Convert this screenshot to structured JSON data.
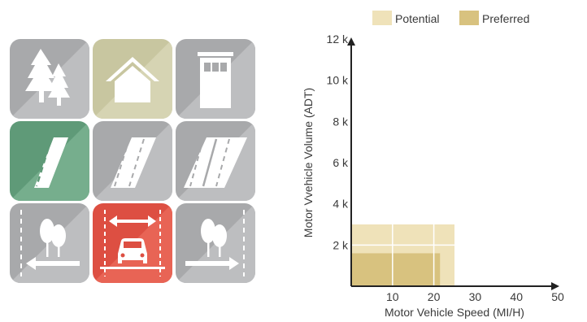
{
  "colors": {
    "tile_gray": "#a8a9ab",
    "tile_gray_light": "#bdbec0",
    "tile_tan": "#cfcda9",
    "tile_green": "#6aa382",
    "tile_red": "#e0574a",
    "potential": "#efe2b9",
    "preferred": "#d8c27f",
    "axis": "#222222"
  },
  "tiles": [
    {
      "icon": "trees-icon",
      "bg": "gray"
    },
    {
      "icon": "house-icon",
      "bg": "tan"
    },
    {
      "icon": "building-icon",
      "bg": "gray"
    },
    {
      "icon": "road-two-lane-icon",
      "bg": "green"
    },
    {
      "icon": "road-shared-lane-icon",
      "bg": "gray"
    },
    {
      "icon": "road-multi-lane-icon",
      "bg": "gray"
    },
    {
      "icon": "trees-left-arrow-icon",
      "bg": "gray"
    },
    {
      "icon": "car-lane-width-icon",
      "bg": "red"
    },
    {
      "icon": "trees-right-arrow-icon",
      "bg": "gray"
    }
  ],
  "chart_data": {
    "type": "area",
    "legend": [
      {
        "key": "potential",
        "label": "Potential"
      },
      {
        "key": "preferred",
        "label": "Preferred"
      }
    ],
    "legend_position": "top",
    "xlabel": "Motor Vehicle Speed (MI/H)",
    "ylabel": "Motor Vvehicle Volume (ADT)",
    "xlim": [
      0,
      50
    ],
    "ylim": [
      0,
      12000
    ],
    "x_ticks": [
      {
        "value": 10,
        "label": "10"
      },
      {
        "value": 20,
        "label": "20"
      },
      {
        "value": 30,
        "label": "30"
      },
      {
        "value": 40,
        "label": "40"
      },
      {
        "value": 50,
        "label": "50"
      }
    ],
    "y_ticks": [
      {
        "value": 2000,
        "label": "2 k"
      },
      {
        "value": 4000,
        "label": "4 k"
      },
      {
        "value": 6000,
        "label": "6 k"
      },
      {
        "value": 8000,
        "label": "8 k"
      },
      {
        "value": 10000,
        "label": "10 k"
      },
      {
        "value": 12000,
        "label": "12 k"
      }
    ],
    "regions": [
      {
        "name": "Potential",
        "x_max": 25,
        "y_max": 3000
      },
      {
        "name": "Preferred",
        "x_max": 21.5,
        "y_max": 1600
      }
    ],
    "grid": "white lines inside regions"
  }
}
